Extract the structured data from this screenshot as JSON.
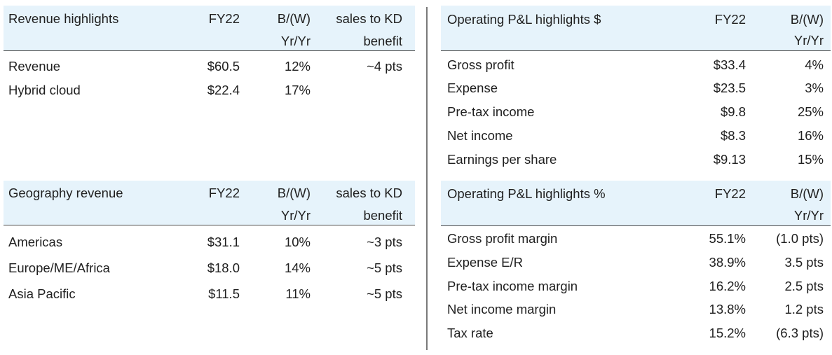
{
  "revenue": {
    "headers": {
      "title": "Revenue highlights",
      "col1": "FY22",
      "col2_line1": "B/(W)",
      "col2_line2": "Yr/Yr",
      "col3_line1": "sales to KD",
      "col3_line2": "benefit"
    },
    "rows": [
      {
        "label": "Revenue",
        "fy22": "$60.5",
        "yy": "12%",
        "kd": "~4 pts"
      },
      {
        "label": "Hybrid cloud",
        "fy22": "$22.4",
        "yy": "17%",
        "kd": ""
      }
    ]
  },
  "geography": {
    "headers": {
      "title": "Geography revenue",
      "col1": "FY22",
      "col2_line1": "B/(W)",
      "col2_line2": "Yr/Yr",
      "col3_line1": "sales to KD",
      "col3_line2": "benefit"
    },
    "rows": [
      {
        "label": "Americas",
        "fy22": "$31.1",
        "yy": "10%",
        "kd": "~3 pts"
      },
      {
        "label": "Europe/ME/Africa",
        "fy22": "$18.0",
        "yy": "14%",
        "kd": "~5 pts"
      },
      {
        "label": "Asia Pacific",
        "fy22": "$11.5",
        "yy": "11%",
        "kd": "~5 pts"
      }
    ]
  },
  "pl_dollars": {
    "headers": {
      "title": "Operating P&L highlights $",
      "col1": "FY22",
      "col2_line1": "B/(W)",
      "col2_line2": "Yr/Yr"
    },
    "rows": [
      {
        "label": "Gross profit",
        "fy22": "$33.4",
        "yy": "4%"
      },
      {
        "label": "Expense",
        "fy22": "$23.5",
        "yy": "3%"
      },
      {
        "label": "Pre-tax income",
        "fy22": "$9.8",
        "yy": "25%"
      },
      {
        "label": "Net income",
        "fy22": "$8.3",
        "yy": "16%"
      },
      {
        "label": "Earnings per share",
        "fy22": "$9.13",
        "yy": "15%"
      }
    ]
  },
  "pl_percent": {
    "headers": {
      "title": "Operating P&L highlights %",
      "col1": "FY22",
      "col2_line1": "B/(W)",
      "col2_line2": "Yr/Yr"
    },
    "rows": [
      {
        "label": "Gross profit margin",
        "fy22": "55.1%",
        "yy": "(1.0 pts)"
      },
      {
        "label": "Expense E/R",
        "fy22": "38.9%",
        "yy": "3.5 pts"
      },
      {
        "label": "Pre-tax income margin",
        "fy22": "16.2%",
        "yy": "2.5 pts"
      },
      {
        "label": "Net income margin",
        "fy22": "13.8%",
        "yy": "1.2 pts"
      },
      {
        "label": "Tax rate",
        "fy22": "15.2%",
        "yy": "(6.3 pts)"
      }
    ]
  }
}
